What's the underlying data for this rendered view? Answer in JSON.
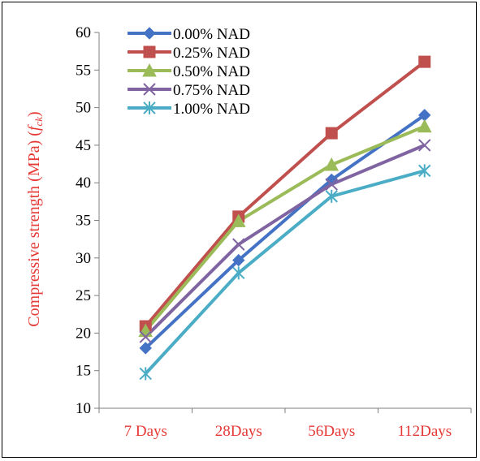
{
  "chart_data": {
    "type": "line",
    "categories": [
      "7 Days",
      "28Days",
      "56Days",
      "112Days"
    ],
    "ylabel_main": "Compressive strength (MPa) (",
    "ylabel_italic": "f",
    "ylabel_sub": "ck",
    "ylabel_close": ")",
    "ylim": [
      10,
      60
    ],
    "yticks": [
      "10",
      "15",
      "20",
      "25",
      "30",
      "35",
      "40",
      "45",
      "50",
      "55",
      "60"
    ],
    "grid": false,
    "legend_position": "top-left",
    "series": [
      {
        "name": "0.00% NAD",
        "color": "#4472c4",
        "marker": "diamond",
        "values": [
          18.0,
          29.7,
          40.4,
          49.0
        ]
      },
      {
        "name": "0.25% NAD",
        "color": "#c0504d",
        "marker": "square",
        "values": [
          20.9,
          35.5,
          46.6,
          56.1
        ]
      },
      {
        "name": "0.50% NAD",
        "color": "#9bbb59",
        "marker": "triangle",
        "values": [
          20.3,
          34.9,
          42.4,
          47.5
        ]
      },
      {
        "name": "0.75% NAD",
        "color": "#8064a2",
        "marker": "x",
        "values": [
          19.5,
          31.8,
          39.8,
          45.0
        ]
      },
      {
        "name": "1.00% NAD",
        "color": "#4bacc6",
        "marker": "star",
        "values": [
          14.6,
          28.0,
          38.2,
          41.6
        ]
      }
    ]
  }
}
